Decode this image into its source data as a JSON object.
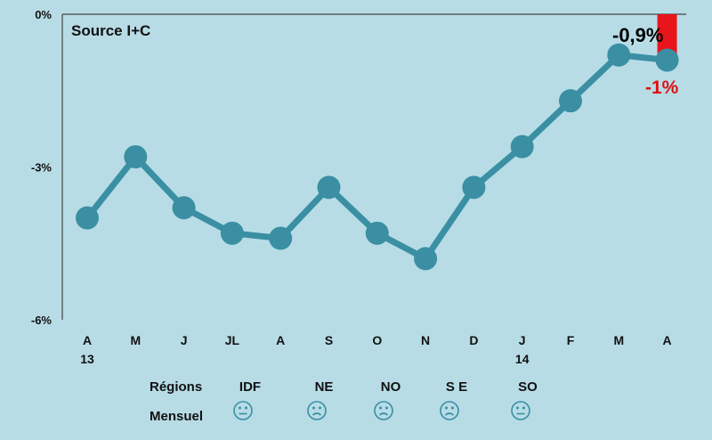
{
  "chart_data": {
    "type": "line",
    "source_label": "Source I+C",
    "yticks": [
      "0%",
      "-3%",
      "-6%"
    ],
    "ylim": [
      -6,
      0
    ],
    "categories": [
      {
        "top": "A",
        "bottom": "13"
      },
      {
        "top": "M",
        "bottom": ""
      },
      {
        "top": "J",
        "bottom": ""
      },
      {
        "top": "JL",
        "bottom": ""
      },
      {
        "top": "A",
        "bottom": ""
      },
      {
        "top": "S",
        "bottom": ""
      },
      {
        "top": "O",
        "bottom": ""
      },
      {
        "top": "N",
        "bottom": ""
      },
      {
        "top": "D",
        "bottom": ""
      },
      {
        "top": "J",
        "bottom": "14"
      },
      {
        "top": "F",
        "bottom": ""
      },
      {
        "top": "M",
        "bottom": ""
      },
      {
        "top": "A",
        "bottom": ""
      }
    ],
    "values": [
      -4.0,
      -2.8,
      -3.8,
      -4.3,
      -4.4,
      -3.4,
      -4.3,
      -4.8,
      -3.4,
      -2.6,
      -1.7,
      -0.8,
      -0.9
    ],
    "line_color": "#3a8fa3",
    "annotations": [
      {
        "text": "-0,9%",
        "color": "#000000"
      },
      {
        "text": "-1%",
        "color": "#e01010"
      }
    ],
    "highlight_bar": {
      "value": -1.0,
      "color": "#e8161b"
    }
  },
  "regions_table": {
    "row1_label": "Régions",
    "row2_label": "Mensuel",
    "regions": [
      {
        "name": "IDF",
        "mood": "neutral"
      },
      {
        "name": "NE",
        "mood": "sad"
      },
      {
        "name": "NO",
        "mood": "sad"
      },
      {
        "name": "S E",
        "mood": "sad"
      },
      {
        "name": "SO",
        "mood": "neutral"
      }
    ]
  }
}
